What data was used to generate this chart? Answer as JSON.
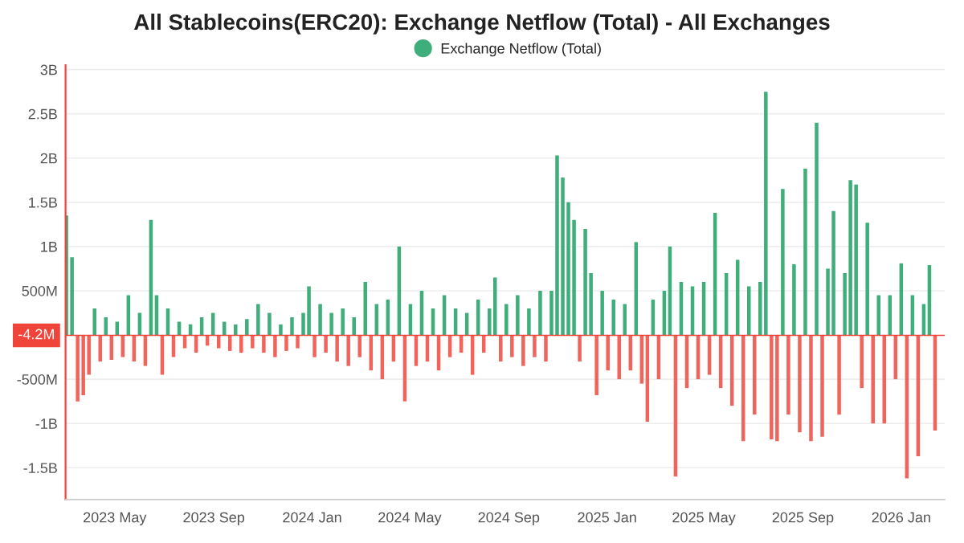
{
  "chart_data": {
    "type": "bar",
    "title": "All Stablecoins(ERC20): Exchange Netflow (Total) - All Exchanges",
    "x": [
      "2023-03-02",
      "2023-03-09",
      "2023-03-16",
      "2023-03-23",
      "2023-03-30",
      "2023-04-06",
      "2023-04-13",
      "2023-04-20",
      "2023-04-27",
      "2023-05-04",
      "2023-05-11",
      "2023-05-18",
      "2023-05-25",
      "2023-06-01",
      "2023-06-08",
      "2023-06-15",
      "2023-06-22",
      "2023-06-29",
      "2023-07-06",
      "2023-07-13",
      "2023-07-20",
      "2023-07-27",
      "2023-08-03",
      "2023-08-10",
      "2023-08-17",
      "2023-08-24",
      "2023-08-31",
      "2023-09-07",
      "2023-09-14",
      "2023-09-21",
      "2023-09-28",
      "2023-10-05",
      "2023-10-12",
      "2023-10-19",
      "2023-10-26",
      "2023-11-02",
      "2023-11-09",
      "2023-11-16",
      "2023-11-23",
      "2023-11-30",
      "2023-12-07",
      "2023-12-14",
      "2023-12-21",
      "2023-12-28",
      "2024-01-04",
      "2024-01-11",
      "2024-01-18",
      "2024-01-25",
      "2024-02-01",
      "2024-02-08",
      "2024-02-15",
      "2024-02-22",
      "2024-02-29",
      "2024-03-07",
      "2024-03-14",
      "2024-03-21",
      "2024-03-28",
      "2024-04-04",
      "2024-04-11",
      "2024-04-18",
      "2024-04-25",
      "2024-05-02",
      "2024-05-09",
      "2024-05-16",
      "2024-05-23",
      "2024-05-30",
      "2024-06-06",
      "2024-06-13",
      "2024-06-20",
      "2024-06-27",
      "2024-07-04",
      "2024-07-11",
      "2024-07-18",
      "2024-07-25",
      "2024-08-01",
      "2024-08-08",
      "2024-08-15",
      "2024-08-22",
      "2024-08-29",
      "2024-09-05",
      "2024-09-12",
      "2024-09-19",
      "2024-09-26",
      "2024-10-03",
      "2024-10-10",
      "2024-10-17",
      "2024-10-24",
      "2024-10-31",
      "2024-11-07",
      "2024-11-14",
      "2024-11-21",
      "2024-11-28",
      "2024-12-05",
      "2024-12-12",
      "2024-12-19",
      "2024-12-26",
      "2025-01-02",
      "2025-01-09",
      "2025-01-16",
      "2025-01-23",
      "2025-01-30",
      "2025-02-06",
      "2025-02-13",
      "2025-02-20",
      "2025-02-27",
      "2025-03-06",
      "2025-03-13",
      "2025-03-20",
      "2025-03-27",
      "2025-04-03",
      "2025-04-10",
      "2025-04-17",
      "2025-04-24",
      "2025-05-01",
      "2025-05-08",
      "2025-05-15",
      "2025-05-22",
      "2025-05-29",
      "2025-06-05",
      "2025-06-12",
      "2025-06-19",
      "2025-06-26",
      "2025-07-03",
      "2025-07-10",
      "2025-07-17",
      "2025-07-24",
      "2025-07-31",
      "2025-08-07",
      "2025-08-14",
      "2025-08-21",
      "2025-08-28",
      "2025-09-04",
      "2025-09-11",
      "2025-09-18",
      "2025-09-25",
      "2025-10-02",
      "2025-10-09",
      "2025-10-16",
      "2025-10-23",
      "2025-10-30",
      "2025-11-06",
      "2025-11-13",
      "2025-11-20",
      "2025-11-27",
      "2025-12-04",
      "2025-12-11",
      "2025-12-18",
      "2025-12-25",
      "2026-01-01",
      "2026-01-08",
      "2026-01-15",
      "2026-01-22",
      "2026-01-29",
      "2026-02-05",
      "2026-02-12",
      "2026-02-19"
    ],
    "series": [
      {
        "name": "Exchange Netflow (Total)",
        "color": "#3fae7a",
        "values": [
          1350000000,
          880000000,
          -750000000,
          -680000000,
          -450000000,
          300000000,
          -300000000,
          200000000,
          -280000000,
          150000000,
          -250000000,
          450000000,
          -300000000,
          250000000,
          -350000000,
          1300000000,
          450000000,
          -450000000,
          300000000,
          -250000000,
          150000000,
          -150000000,
          120000000,
          -200000000,
          200000000,
          -120000000,
          250000000,
          -150000000,
          150000000,
          -180000000,
          120000000,
          -200000000,
          180000000,
          -150000000,
          350000000,
          -200000000,
          250000000,
          -250000000,
          120000000,
          -180000000,
          200000000,
          -150000000,
          250000000,
          550000000,
          -250000000,
          350000000,
          -200000000,
          250000000,
          -300000000,
          300000000,
          -350000000,
          200000000,
          -250000000,
          600000000,
          -400000000,
          350000000,
          -500000000,
          400000000,
          -300000000,
          1000000000,
          -750000000,
          350000000,
          -350000000,
          500000000,
          -300000000,
          300000000,
          -400000000,
          450000000,
          -250000000,
          300000000,
          -200000000,
          250000000,
          -450000000,
          400000000,
          -200000000,
          300000000,
          650000000,
          -300000000,
          350000000,
          -250000000,
          450000000,
          -350000000,
          300000000,
          -250000000,
          500000000,
          -300000000,
          500000000,
          2030000000,
          1780000000,
          1500000000,
          1300000000,
          -300000000,
          1200000000,
          700000000,
          -680000000,
          500000000,
          -400000000,
          400000000,
          -500000000,
          350000000,
          -400000000,
          1050000000,
          -550000000,
          -980000000,
          400000000,
          -500000000,
          500000000,
          1000000000,
          -1600000000,
          600000000,
          -600000000,
          550000000,
          -500000000,
          600000000,
          -450000000,
          1380000000,
          -600000000,
          700000000,
          -800000000,
          850000000,
          -1200000000,
          550000000,
          -900000000,
          600000000,
          2750000000,
          -1180000000,
          -1200000000,
          1650000000,
          -900000000,
          800000000,
          -1100000000,
          1880000000,
          -1200000000,
          2400000000,
          -1150000000,
          750000000,
          1400000000,
          -900000000,
          700000000,
          1750000000,
          1700000000,
          -600000000,
          1270000000,
          -1000000000,
          450000000,
          -1000000000,
          450000000,
          -500000000,
          810000000,
          -1620000000,
          450000000,
          -1370000000,
          350000000,
          790000000,
          -1080000000,
          -4200000
        ],
        "colors": [
          "#3fae7a",
          "#3fae7a",
          "#f0645c",
          "#f0645c",
          "#f0645c",
          "#3fae7a",
          "#f0645c",
          "#3fae7a",
          "#f0645c",
          "#3fae7a",
          "#f0645c",
          "#3fae7a",
          "#f0645c",
          "#3fae7a",
          "#f0645c",
          "#3fae7a",
          "#3fae7a",
          "#f0645c",
          "#3fae7a",
          "#f0645c",
          "#3fae7a",
          "#f0645c",
          "#3fae7a",
          "#f0645c",
          "#3fae7a",
          "#f0645c",
          "#3fae7a",
          "#f0645c",
          "#3fae7a",
          "#f0645c",
          "#3fae7a",
          "#f0645c",
          "#3fae7a",
          "#f0645c",
          "#3fae7a",
          "#f0645c",
          "#3fae7a",
          "#f0645c",
          "#3fae7a",
          "#f0645c",
          "#3fae7a",
          "#f0645c",
          "#3fae7a",
          "#3fae7a",
          "#f0645c",
          "#3fae7a",
          "#f0645c",
          "#3fae7a",
          "#f0645c",
          "#3fae7a",
          "#f0645c",
          "#3fae7a",
          "#f0645c",
          "#3fae7a",
          "#f0645c",
          "#3fae7a",
          "#f0645c",
          "#3fae7a",
          "#f0645c",
          "#3fae7a",
          "#f0645c",
          "#3fae7a",
          "#f0645c",
          "#3fae7a",
          "#f0645c",
          "#3fae7a",
          "#f0645c",
          "#3fae7a",
          "#f0645c",
          "#3fae7a",
          "#f0645c",
          "#3fae7a",
          "#f0645c",
          "#3fae7a",
          "#f0645c",
          "#3fae7a",
          "#3fae7a",
          "#f0645c",
          "#3fae7a",
          "#f0645c",
          "#3fae7a",
          "#f0645c",
          "#3fae7a",
          "#f0645c",
          "#3fae7a",
          "#f0645c",
          "#3fae7a",
          "#3fae7a",
          "#3fae7a",
          "#3fae7a",
          "#3fae7a",
          "#f0645c",
          "#3fae7a",
          "#3fae7a",
          "#f0645c",
          "#3fae7a",
          "#f0645c",
          "#3fae7a",
          "#f0645c",
          "#3fae7a",
          "#f0645c",
          "#3fae7a",
          "#f0645c",
          "#f0645c",
          "#3fae7a",
          "#f0645c",
          "#3fae7a",
          "#3fae7a",
          "#f0645c",
          "#3fae7a",
          "#f0645c",
          "#3fae7a",
          "#f0645c",
          "#3fae7a",
          "#f0645c",
          "#3fae7a",
          "#f0645c",
          "#3fae7a",
          "#f0645c",
          "#3fae7a",
          "#f0645c",
          "#3fae7a",
          "#f0645c",
          "#3fae7a",
          "#3fae7a",
          "#f0645c",
          "#f0645c",
          "#3fae7a",
          "#f0645c",
          "#3fae7a",
          "#f0645c",
          "#3fae7a",
          "#f0645c",
          "#3fae7a",
          "#f0645c",
          "#3fae7a",
          "#3fae7a",
          "#f0645c",
          "#3fae7a",
          "#3fae7a",
          "#3fae7a",
          "#f0645c",
          "#3fae7a",
          "#f0645c",
          "#3fae7a",
          "#f0645c",
          "#3fae7a",
          "#f0645c",
          "#3fae7a",
          "#f0645c",
          "#3fae7a",
          "#f0645c",
          "#3fae7a",
          "#3fae7a",
          "#f0645c",
          "#f0645c"
        ]
      }
    ],
    "xlim": [
      "2023-03-01",
      "2026-02-24"
    ],
    "xticks": [
      {
        "value": "2023-05-01",
        "label": "2023 May"
      },
      {
        "value": "2023-09-01",
        "label": "2023 Sep"
      },
      {
        "value": "2024-01-01",
        "label": "2024 Jan"
      },
      {
        "value": "2024-05-01",
        "label": "2024 May"
      },
      {
        "value": "2024-09-01",
        "label": "2024 Sep"
      },
      {
        "value": "2025-01-01",
        "label": "2025 Jan"
      },
      {
        "value": "2025-05-01",
        "label": "2025 May"
      },
      {
        "value": "2025-09-01",
        "label": "2025 Sep"
      },
      {
        "value": "2026-01-01",
        "label": "2026 Jan"
      }
    ],
    "ylim": [
      -1860000000,
      3050000000
    ],
    "yticks": [
      {
        "value": -1500000000,
        "label": "-1.5B"
      },
      {
        "value": -1000000000,
        "label": "-1B"
      },
      {
        "value": -500000000,
        "label": "-500M"
      },
      {
        "value": 500000000,
        "label": "500M"
      },
      {
        "value": 1000000000,
        "label": "1B"
      },
      {
        "value": 1500000000,
        "label": "1.5B"
      },
      {
        "value": 2000000000,
        "label": "2B"
      },
      {
        "value": 2500000000,
        "label": "2.5B"
      },
      {
        "value": 3000000000,
        "label": "3B"
      }
    ],
    "ref_lines": [
      {
        "axis": "y",
        "value": -4200000,
        "label": "-4.2M",
        "color": "#f0443a"
      }
    ],
    "grid": "y",
    "legend": "top"
  }
}
